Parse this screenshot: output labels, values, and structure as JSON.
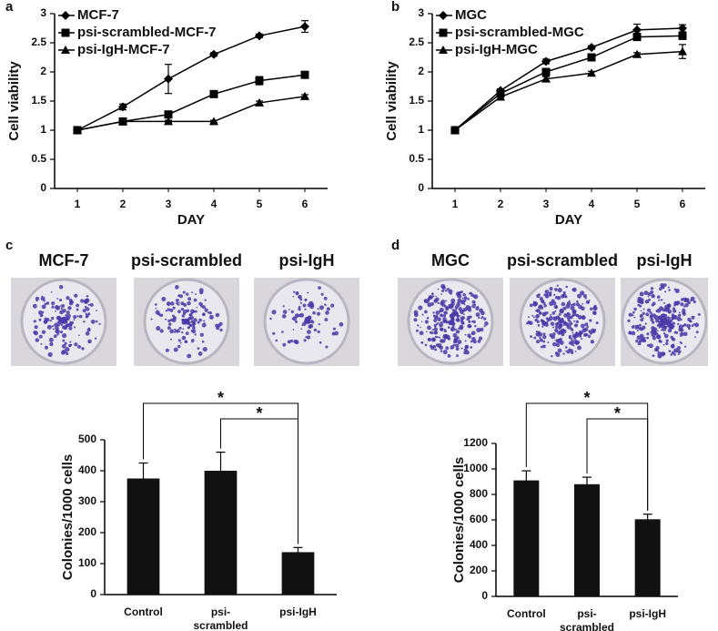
{
  "figure": {
    "panel_labels": [
      "a",
      "b",
      "c",
      "d"
    ],
    "plate_captions": [
      [
        "MCF-7",
        "psi-scrambled",
        "psi-IgH"
      ],
      [
        "MGC",
        "psi-scrambled",
        "psi-IgH"
      ]
    ]
  },
  "chart_data": [
    {
      "type": "line",
      "ylabel": "Cell viability",
      "xlabel": "DAY",
      "legend": "upper left",
      "categories": [
        "1",
        "2",
        "3",
        "4",
        "5",
        "6"
      ],
      "ylim": [
        0,
        3
      ],
      "yticks": [
        0,
        0.5,
        1,
        1.5,
        2,
        2.5,
        3
      ],
      "series": [
        {
          "name": "MCF-7",
          "color": "#000000",
          "marker": "diamond",
          "values": [
            1,
            1.4,
            1.88,
            2.3,
            2.62,
            2.78
          ],
          "errors": [
            0,
            0.05,
            0.25,
            0.03,
            0.03,
            0.1
          ]
        },
        {
          "name": "psi-scrambled-MCF-7",
          "color": "#000000",
          "marker": "square",
          "values": [
            1,
            1.15,
            1.27,
            1.62,
            1.85,
            1.95
          ],
          "errors": [
            0,
            0.03,
            0.05,
            0.03,
            0.07,
            0.05
          ]
        },
        {
          "name": "psi-IgH-MCF-7",
          "color": "#000000",
          "marker": "triangle",
          "values": [
            1,
            1.15,
            1.15,
            1.15,
            1.47,
            1.58
          ],
          "errors": [
            0,
            0.02,
            0.02,
            0.02,
            0.03,
            0.03
          ]
        }
      ]
    },
    {
      "type": "line",
      "ylabel": "Cell viability",
      "xlabel": "DAY",
      "legend": "upper left",
      "categories": [
        "1",
        "2",
        "3",
        "4",
        "5",
        "6"
      ],
      "ylim": [
        0,
        3
      ],
      "yticks": [
        0,
        0.5,
        1,
        1.5,
        2,
        2.5,
        3
      ],
      "series": [
        {
          "name": "MGC",
          "color": "#000000",
          "marker": "diamond",
          "values": [
            1,
            1.68,
            2.18,
            2.42,
            2.72,
            2.75
          ],
          "errors": [
            0,
            0.03,
            0.04,
            0.03,
            0.1,
            0.06
          ]
        },
        {
          "name": "psi-scrambled-MGC",
          "color": "#000000",
          "marker": "square",
          "values": [
            1,
            1.63,
            2.0,
            2.25,
            2.6,
            2.62
          ],
          "errors": [
            0,
            0.03,
            0.04,
            0.03,
            0.06,
            0.06
          ]
        },
        {
          "name": "psi-IgH-MGC",
          "color": "#000000",
          "marker": "triangle",
          "values": [
            1,
            1.57,
            1.88,
            1.98,
            2.3,
            2.35
          ],
          "errors": [
            0,
            0.03,
            0.04,
            0.03,
            0.03,
            0.12
          ]
        }
      ]
    },
    {
      "type": "bar",
      "ylabel": "Colonies/1000 cells",
      "color": "#111111",
      "categories": [
        "Control",
        "psi-\nscrambled",
        "psi-IgH"
      ],
      "values": [
        375,
        400,
        137
      ],
      "errors": [
        50,
        60,
        15
      ],
      "ylim": [
        0,
        500
      ],
      "yticks": [
        0,
        100,
        200,
        300,
        400,
        500
      ],
      "annotations": [
        "*",
        "*"
      ]
    },
    {
      "type": "bar",
      "ylabel": "Colonies/1000 cells",
      "color": "#111111",
      "categories": [
        "Control",
        "psi-\nscrambled",
        "psi-IgH"
      ],
      "values": [
        910,
        880,
        605
      ],
      "errors": [
        75,
        55,
        40
      ],
      "ylim": [
        0,
        1200
      ],
      "yticks": [
        0,
        200,
        400,
        600,
        800,
        1000,
        1200
      ],
      "annotations": [
        "*",
        "*"
      ]
    }
  ]
}
